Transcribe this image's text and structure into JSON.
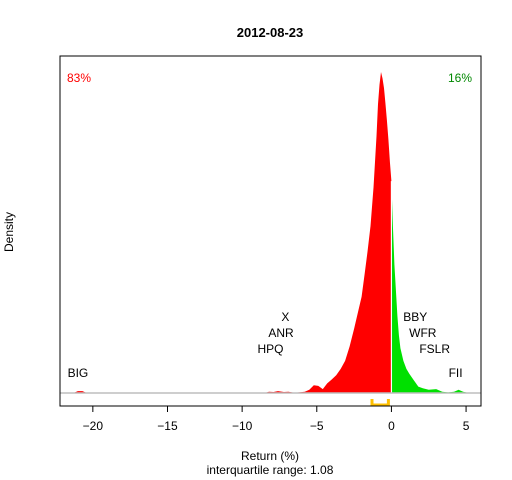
{
  "chart_data": {
    "type": "area",
    "title": "2012-08-23",
    "xlabel": "Return (%)",
    "subtitle": "interquartile range: 1.08",
    "ylabel": "Density",
    "xlim": [
      -22.2,
      6.0
    ],
    "ylim": [
      0,
      1.0
    ],
    "xticks": [
      -20,
      -15,
      -10,
      -5,
      0,
      5
    ],
    "split_at": 0,
    "negative_share": "83%",
    "positive_share": "16%",
    "colors": {
      "negative": "#ff0000",
      "positive": "#00e000",
      "iqr": "#ffc000",
      "baseline": "#bebebe",
      "axis": "#000000"
    },
    "iqr": {
      "low": -1.3,
      "high": -0.2
    },
    "density": [
      [
        -21.3,
        0.0
      ],
      [
        -21.0,
        0.006
      ],
      [
        -20.7,
        0.006
      ],
      [
        -20.4,
        0.0
      ],
      [
        -8.5,
        0.0
      ],
      [
        -8.2,
        0.004
      ],
      [
        -7.9,
        0.003
      ],
      [
        -7.6,
        0.006
      ],
      [
        -7.2,
        0.003
      ],
      [
        -6.9,
        0.004
      ],
      [
        -6.5,
        0.001
      ],
      [
        -6.2,
        0.002
      ],
      [
        -5.8,
        0.004
      ],
      [
        -5.5,
        0.01
      ],
      [
        -5.2,
        0.024
      ],
      [
        -4.9,
        0.022
      ],
      [
        -4.6,
        0.012
      ],
      [
        -4.3,
        0.03
      ],
      [
        -4.0,
        0.042
      ],
      [
        -3.7,
        0.055
      ],
      [
        -3.4,
        0.075
      ],
      [
        -3.1,
        0.1
      ],
      [
        -2.8,
        0.145
      ],
      [
        -2.5,
        0.2
      ],
      [
        -2.2,
        0.26
      ],
      [
        -2.0,
        0.3
      ],
      [
        -1.8,
        0.37
      ],
      [
        -1.6,
        0.44
      ],
      [
        -1.4,
        0.52
      ],
      [
        -1.2,
        0.64
      ],
      [
        -1.0,
        0.8
      ],
      [
        -0.9,
        0.9
      ],
      [
        -0.8,
        0.96
      ],
      [
        -0.7,
        1.0
      ],
      [
        -0.6,
        0.98
      ],
      [
        -0.5,
        0.95
      ],
      [
        -0.4,
        0.9
      ],
      [
        -0.3,
        0.85
      ],
      [
        -0.2,
        0.79
      ],
      [
        -0.1,
        0.72
      ],
      [
        0.0,
        0.66
      ],
      [
        0.1,
        0.52
      ],
      [
        0.2,
        0.4
      ],
      [
        0.3,
        0.32
      ],
      [
        0.4,
        0.24
      ],
      [
        0.5,
        0.18
      ],
      [
        0.6,
        0.14
      ],
      [
        0.8,
        0.1
      ],
      [
        1.0,
        0.075
      ],
      [
        1.2,
        0.06
      ],
      [
        1.5,
        0.04
      ],
      [
        1.8,
        0.02
      ],
      [
        2.1,
        0.015
      ],
      [
        2.5,
        0.01
      ],
      [
        3.0,
        0.012
      ],
      [
        3.4,
        0.004
      ],
      [
        3.8,
        0.002
      ],
      [
        4.2,
        0.004
      ],
      [
        4.5,
        0.01
      ],
      [
        4.8,
        0.004
      ],
      [
        5.2,
        0.0
      ]
    ],
    "annotations": [
      {
        "text": "BIG",
        "x": -21.0,
        "y": 0.05,
        "anchor": "middle"
      },
      {
        "text": "X",
        "x": -7.1,
        "y": 0.225,
        "anchor": "middle"
      },
      {
        "text": "ANR",
        "x": -7.4,
        "y": 0.175,
        "anchor": "middle"
      },
      {
        "text": "HPQ",
        "x": -8.1,
        "y": 0.125,
        "anchor": "middle"
      },
      {
        "text": "BBY",
        "x": 1.6,
        "y": 0.225,
        "anchor": "middle"
      },
      {
        "text": "WFR",
        "x": 2.1,
        "y": 0.175,
        "anchor": "middle"
      },
      {
        "text": "FSLR",
        "x": 2.9,
        "y": 0.125,
        "anchor": "middle"
      },
      {
        "text": "FII",
        "x": 4.3,
        "y": 0.05,
        "anchor": "middle"
      }
    ]
  }
}
